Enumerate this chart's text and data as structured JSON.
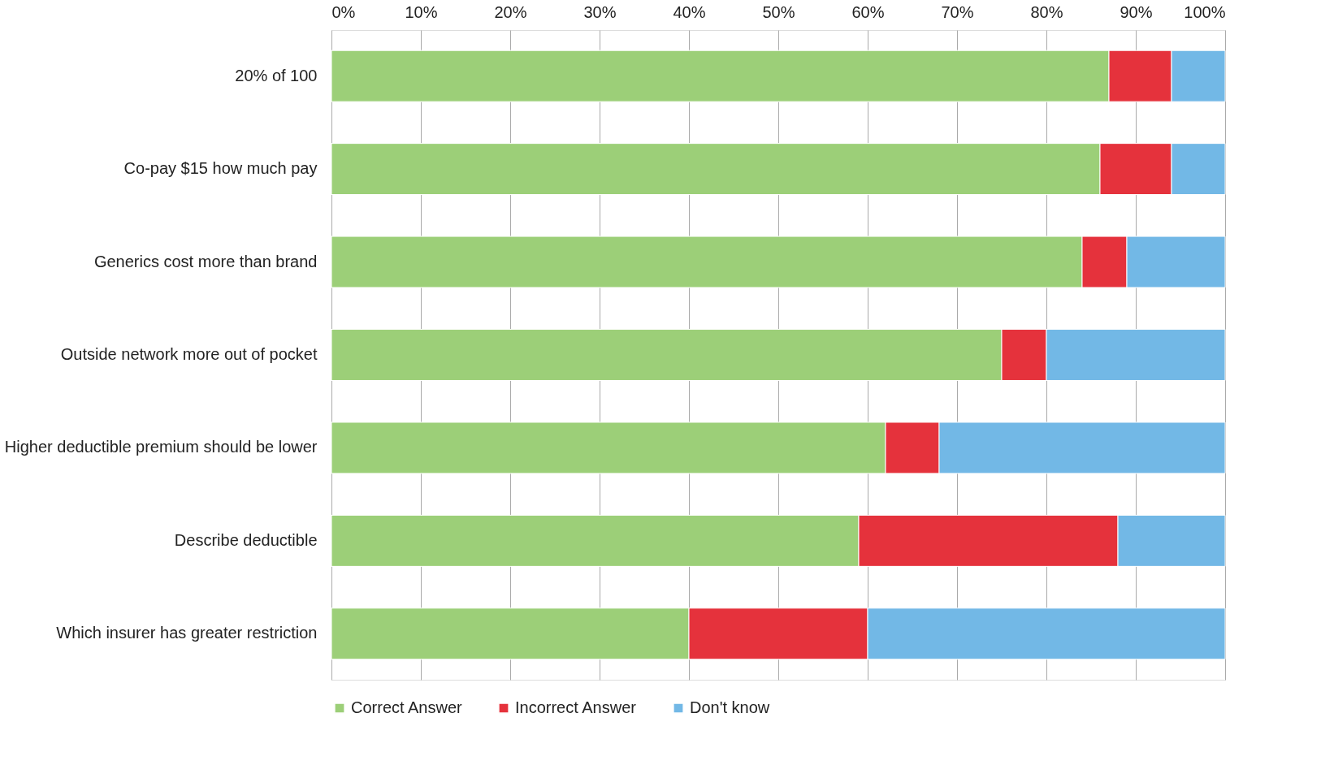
{
  "chart_data": {
    "type": "bar",
    "orientation": "horizontal",
    "stacked": true,
    "categories": [
      "20% of 100",
      "Co-pay $15 how much pay",
      "Generics cost more than brand",
      "Outside network more out of pocket",
      "Higher deductible premium should be lower",
      "Describe deductible",
      "Which insurer has greater restriction"
    ],
    "series": [
      {
        "name": "Correct Answer",
        "color": "#9ccf78",
        "values": [
          87,
          86,
          84,
          75,
          62,
          59,
          40
        ]
      },
      {
        "name": "Incorrect Answer",
        "color": "#e5323c",
        "values": [
          7,
          8,
          5,
          5,
          6,
          29,
          20
        ]
      },
      {
        "name": "Don't know",
        "color": "#72b8e6",
        "values": [
          6,
          6,
          11,
          20,
          32,
          12,
          40
        ]
      }
    ],
    "xlim": [
      0,
      100
    ],
    "xticks": [
      {
        "value": 0,
        "label": "0%"
      },
      {
        "value": 10,
        "label": "10%"
      },
      {
        "value": 20,
        "label": "20%"
      },
      {
        "value": 30,
        "label": "30%"
      },
      {
        "value": 40,
        "label": "40%"
      },
      {
        "value": 50,
        "label": "50%"
      },
      {
        "value": 60,
        "label": "60%"
      },
      {
        "value": 70,
        "label": "70%"
      },
      {
        "value": 80,
        "label": "80%"
      },
      {
        "value": 90,
        "label": "90%"
      },
      {
        "value": 100,
        "label": "100%"
      }
    ],
    "grid": "x",
    "legend": "bottom"
  }
}
